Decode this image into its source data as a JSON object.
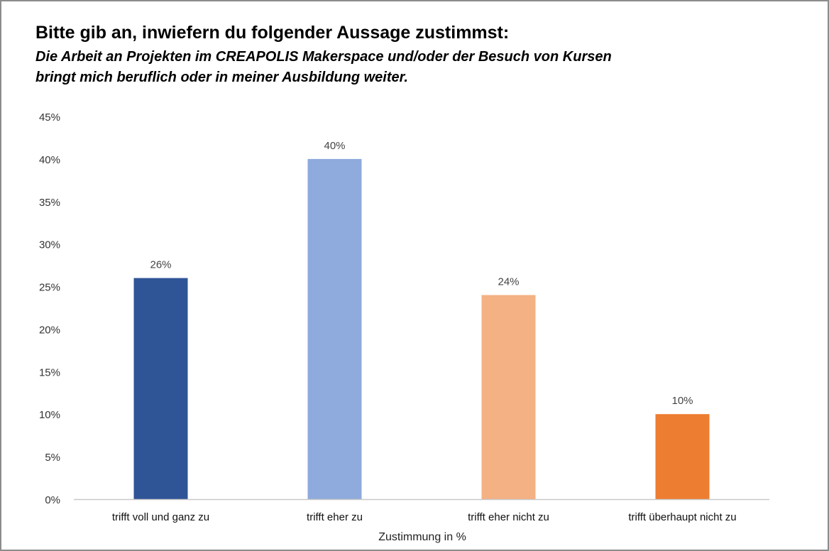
{
  "chart_data": {
    "type": "bar",
    "title": "Bitte gib an, inwiefern du folgender Aussage zustimmst:",
    "subtitle_lines": [
      "Die Arbeit an Projekten im CREAPOLIS Makerspace und/oder der Besuch von Kursen",
      "bringt mich beruflich oder in meiner Ausbildung weiter."
    ],
    "categories": [
      "trifft voll und ganz zu",
      "trifft eher zu",
      "trifft eher nicht zu",
      "trifft überhaupt nicht zu"
    ],
    "values": [
      26,
      40,
      24,
      10
    ],
    "value_labels": [
      "26%",
      "40%",
      "24%",
      "10%"
    ],
    "colors": [
      "#2F5597",
      "#8FAADC",
      "#F4B183",
      "#ED7D31"
    ],
    "xlabel": "Zustimmung in %",
    "ylabel": "",
    "ylim": [
      0,
      45
    ],
    "yticks": [
      0,
      5,
      10,
      15,
      20,
      25,
      30,
      35,
      40,
      45
    ],
    "ytick_labels": [
      "0%",
      "5%",
      "10%",
      "15%",
      "20%",
      "25%",
      "30%",
      "35%",
      "40%",
      "45%"
    ],
    "grid": false,
    "legend": "none"
  }
}
